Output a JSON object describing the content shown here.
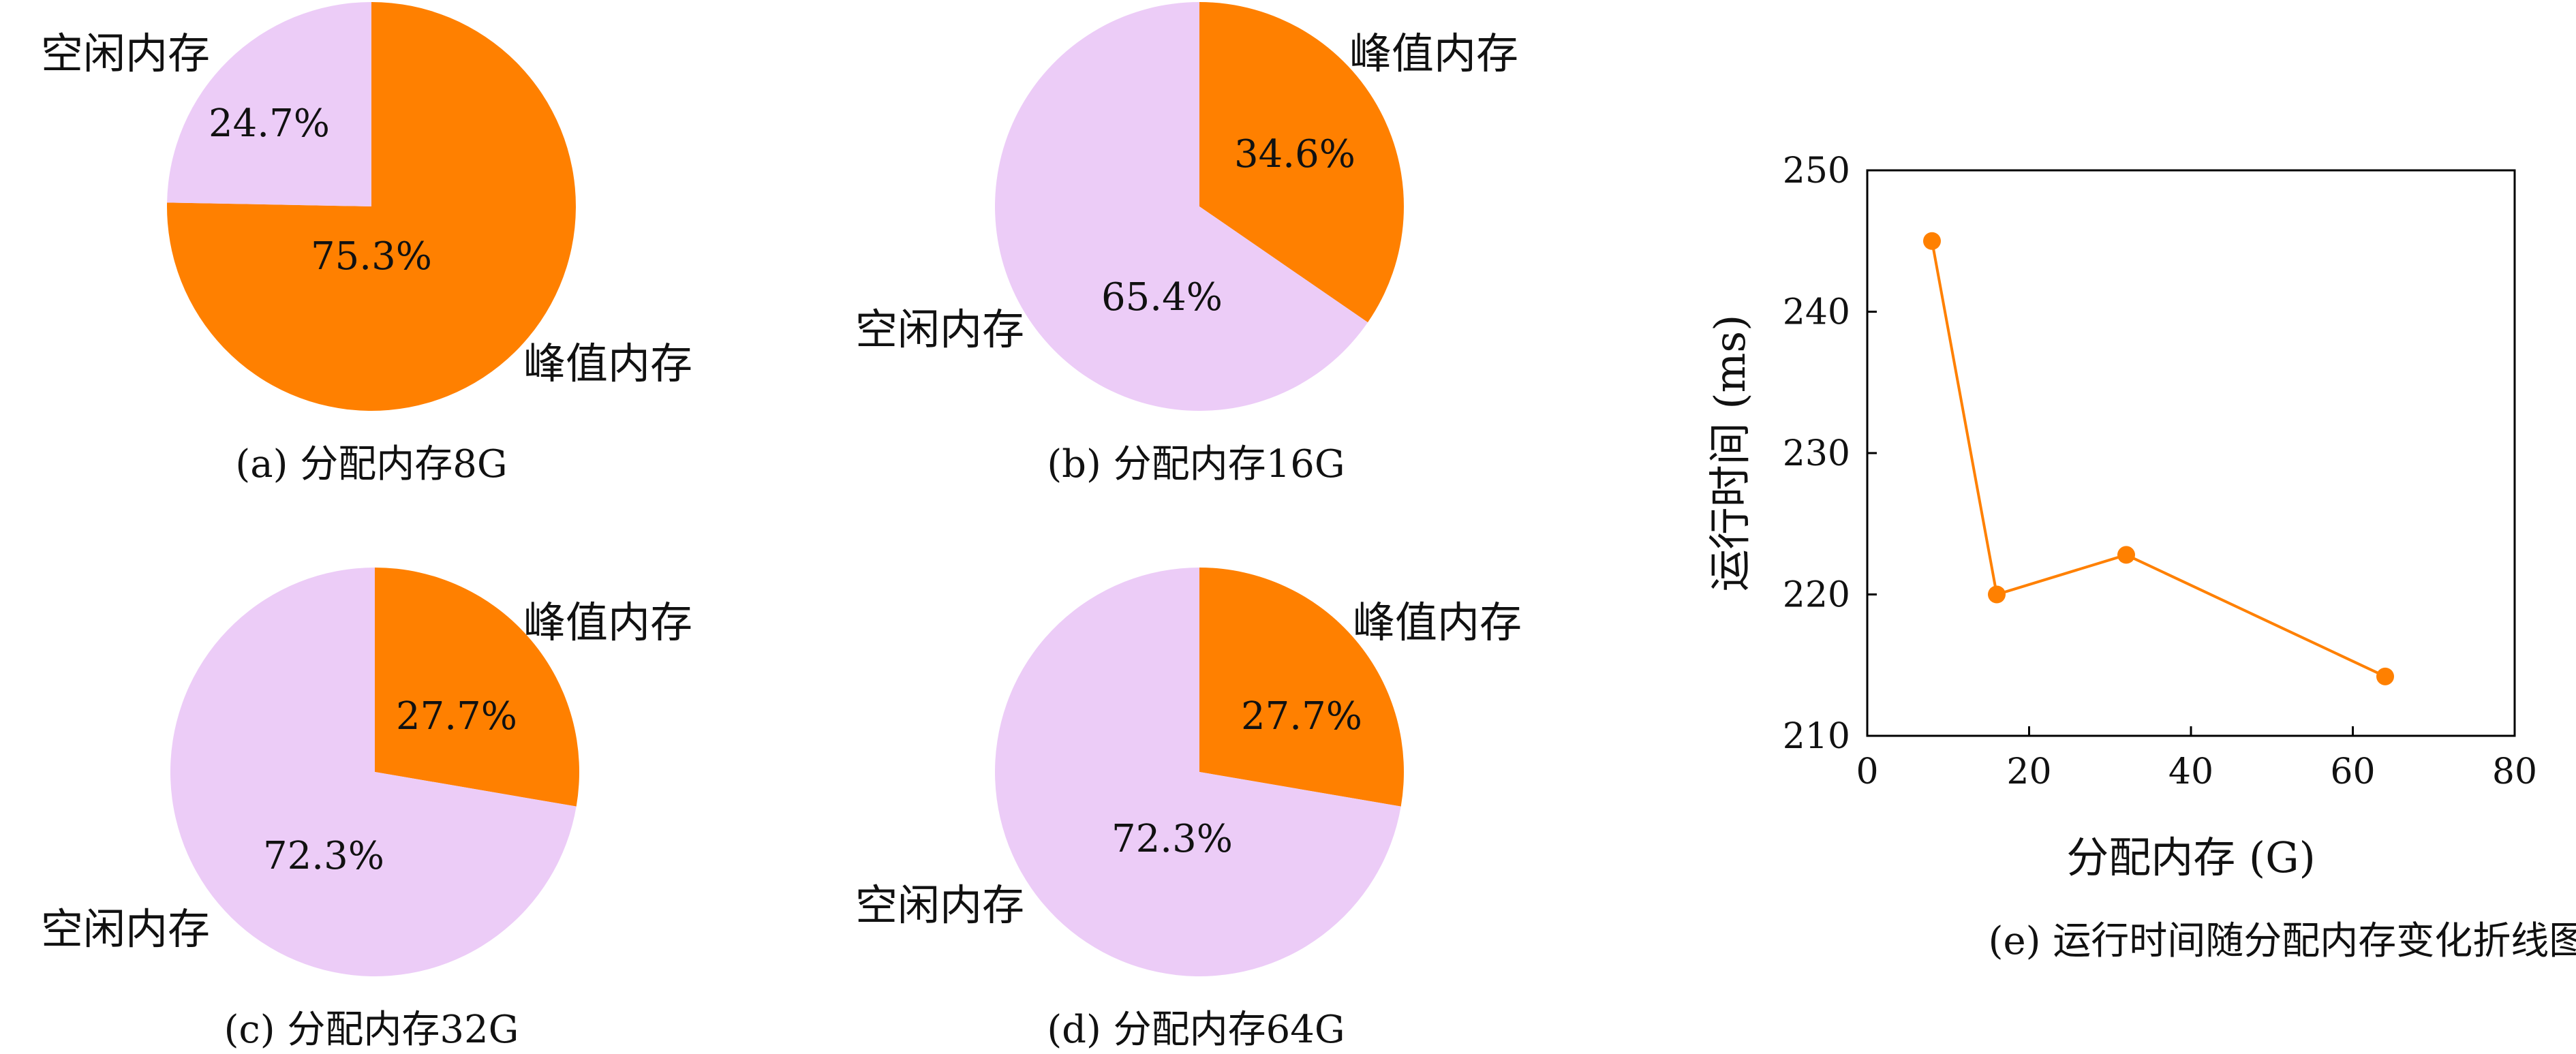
{
  "colors": {
    "peak": "#FF8000",
    "idle": "#ECCCF7",
    "line": "#FF8000"
  },
  "chart_data": [
    {
      "type": "pie",
      "caption": "(a) 分配内存8G",
      "slices": [
        {
          "label": "峰值内存",
          "value": 75.3,
          "text": "75.3%"
        },
        {
          "label": "空闲内存",
          "value": 24.7,
          "text": "24.7%"
        }
      ]
    },
    {
      "type": "pie",
      "caption": "(b) 分配内存16G",
      "slices": [
        {
          "label": "峰值内存",
          "value": 34.6,
          "text": "34.6%"
        },
        {
          "label": "空闲内存",
          "value": 65.4,
          "text": "65.4%"
        }
      ]
    },
    {
      "type": "pie",
      "caption": "(c) 分配内存32G",
      "slices": [
        {
          "label": "峰值内存",
          "value": 27.7,
          "text": "27.7%"
        },
        {
          "label": "空闲内存",
          "value": 72.3,
          "text": "72.3%"
        }
      ]
    },
    {
      "type": "pie",
      "caption": "(d) 分配内存64G",
      "slices": [
        {
          "label": "峰值内存",
          "value": 27.7,
          "text": "27.7%"
        },
        {
          "label": "空闲内存",
          "value": 72.3,
          "text": "72.3%"
        }
      ]
    },
    {
      "type": "line",
      "caption": "(e) 运行时间随分配内存变化折线图",
      "xlabel": "分配内存 (G)",
      "ylabel": "运行时间 (ms)",
      "xlim": [
        0,
        80
      ],
      "ylim": [
        210,
        250
      ],
      "xticks": [
        "0",
        "20",
        "40",
        "60",
        "80"
      ],
      "yticks": [
        "210",
        "220",
        "230",
        "240",
        "250"
      ],
      "x": [
        8,
        16,
        32,
        64
      ],
      "y": [
        245,
        220,
        222.8,
        214.2
      ]
    }
  ]
}
